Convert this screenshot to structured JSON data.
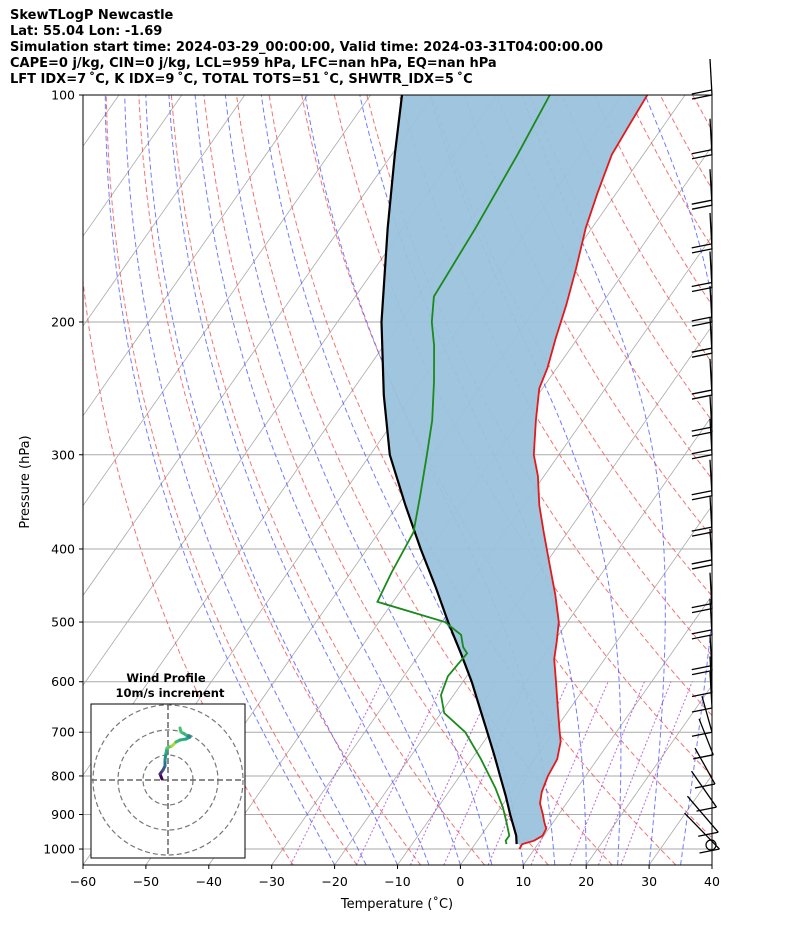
{
  "header": {
    "line1": "SkewTLogP Newcastle",
    "line2": "Lat: 55.04   Lon: -1.69",
    "line3": "Simulation start time: 2024-03-29_00:00:00, Valid time: 2024-03-31T04:00:00.00",
    "line4": "CAPE=0 j/kg, CIN=0 j/kg, LCL=959 hPa, LFC=nan hPa, EQ=nan hPa",
    "line5": "LFT IDX=7 ˚C, K IDX=9 ˚C, TOTAL TOTS=51 ˚C, SHWTR_IDX=5 ˚C"
  },
  "colors": {
    "temperature": "#e31a1c",
    "dewpoint": "#1a8a1a",
    "parcel": "#000000",
    "cin_area": "#9bc2dc",
    "dry_adiabat": "#f05a5a",
    "moist_adiabat": "#4d5bff",
    "mixing_ratio": "#9b30c8",
    "isotherm": "#aaaaaa"
  },
  "chart_data": {
    "type": "line",
    "title": "",
    "xlabel": "Temperature (˚C)",
    "ylabel": "Pressure (hPa)",
    "xlim": [
      -60,
      40
    ],
    "ylim": [
      1050,
      100
    ],
    "yscale": "log",
    "grid": true,
    "x_ticks": [
      "−60",
      "−50",
      "−40",
      "−30",
      "−20",
      "−10",
      "0",
      "10",
      "20",
      "30",
      "40"
    ],
    "y_ticks": [
      "100",
      "200",
      "300",
      "400",
      "500",
      "600",
      "700",
      "800",
      "900",
      "1000"
    ],
    "series": [
      {
        "role": "temperature",
        "points": [
          [
            1000,
            7.6
          ],
          [
            985,
            7.5
          ],
          [
            975,
            9.0
          ],
          [
            960,
            9.8
          ],
          [
            940,
            9.6
          ],
          [
            920,
            8.5
          ],
          [
            900,
            7.5
          ],
          [
            870,
            5.8
          ],
          [
            840,
            4.8
          ],
          [
            800,
            4.0
          ],
          [
            760,
            3.6
          ],
          [
            720,
            2.2
          ],
          [
            700,
            1.0
          ],
          [
            650,
            -2.0
          ],
          [
            600,
            -5.2
          ],
          [
            560,
            -8.0
          ],
          [
            530,
            -9.6
          ],
          [
            500,
            -11.4
          ],
          [
            460,
            -15.0
          ],
          [
            420,
            -19.2
          ],
          [
            380,
            -23.8
          ],
          [
            350,
            -27.5
          ],
          [
            320,
            -31.0
          ],
          [
            300,
            -34.0
          ],
          [
            270,
            -37.5
          ],
          [
            245,
            -40.5
          ],
          [
            230,
            -41.5
          ],
          [
            210,
            -43.5
          ],
          [
            190,
            -45.5
          ],
          [
            170,
            -48.0
          ],
          [
            150,
            -51.0
          ],
          [
            135,
            -53.0
          ],
          [
            120,
            -55.0
          ],
          [
            110,
            -55.5
          ],
          [
            100,
            -56.0
          ]
        ]
      },
      {
        "role": "dewpoint",
        "points": [
          [
            985,
            5.0
          ],
          [
            975,
            4.5
          ],
          [
            960,
            4.5
          ],
          [
            920,
            2.5
          ],
          [
            880,
            0.3
          ],
          [
            830,
            -3.0
          ],
          [
            760,
            -8.5
          ],
          [
            700,
            -14.0
          ],
          [
            660,
            -19.5
          ],
          [
            625,
            -22.0
          ],
          [
            590,
            -23.0
          ],
          [
            550,
            -22.5
          ],
          [
            540,
            -23.8
          ],
          [
            520,
            -25.5
          ],
          [
            500,
            -29.5
          ],
          [
            470,
            -42.5
          ],
          [
            430,
            -43.5
          ],
          [
            380,
            -44.5
          ],
          [
            340,
            -47.5
          ],
          [
            300,
            -51.0
          ],
          [
            270,
            -54.0
          ],
          [
            240,
            -58.0
          ],
          [
            215,
            -62.0
          ],
          [
            200,
            -65.0
          ],
          [
            185,
            -67.5
          ],
          [
            150,
            -68.5
          ],
          [
            120,
            -70.0
          ],
          [
            100,
            -71.5
          ]
        ]
      },
      {
        "role": "parcel",
        "points": [
          [
            985,
            6.6
          ],
          [
            960,
            5.6
          ],
          [
            900,
            2.3
          ],
          [
            850,
            -0.5
          ],
          [
            800,
            -3.6
          ],
          [
            750,
            -6.9
          ],
          [
            700,
            -10.5
          ],
          [
            650,
            -14.4
          ],
          [
            600,
            -18.6
          ],
          [
            550,
            -23.5
          ],
          [
            500,
            -29.0
          ],
          [
            450,
            -34.8
          ],
          [
            400,
            -41.5
          ],
          [
            350,
            -48.8
          ],
          [
            300,
            -56.9
          ],
          [
            250,
            -64.5
          ],
          [
            200,
            -73.0
          ],
          [
            150,
            -82.5
          ],
          [
            120,
            -89.5
          ],
          [
            100,
            -95.0
          ]
        ]
      }
    ],
    "barb_levels": [
      100,
      120,
      140,
      160,
      180,
      200,
      220,
      250,
      280,
      300,
      340,
      380,
      420,
      480,
      520,
      580,
      620,
      650,
      700,
      750,
      820,
      880,
      950,
      1000
    ]
  },
  "inset": {
    "title_line1": "Wind Profile",
    "title_line2": "10m/s increment"
  }
}
